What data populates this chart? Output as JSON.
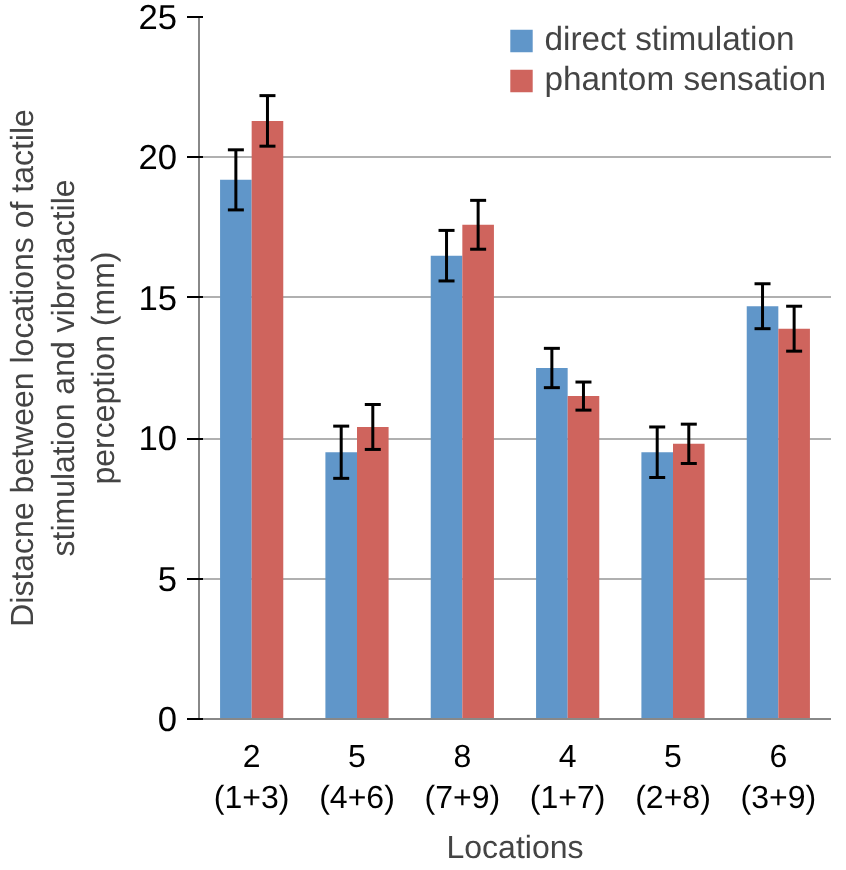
{
  "chart_data": {
    "type": "bar",
    "categories": [
      "2\n(1+3)",
      "5\n(4+6)",
      "8\n(7+9)",
      "4\n(1+7)",
      "5\n(2+8)",
      "6\n(3+9)"
    ],
    "xlabel": "Locations",
    "ylabel": "Distacne between locations of tactile\nstimulation and vibrotactile\nperception (mm)",
    "series": [
      {
        "name": "direct stimulation",
        "color": "#6096c9",
        "values": [
          19.2,
          9.5,
          16.5,
          12.5,
          9.5,
          14.7
        ],
        "errors": [
          1.07,
          0.93,
          0.9,
          0.7,
          0.9,
          0.8
        ]
      },
      {
        "name": "phantom sensation",
        "color": "#cf645d",
        "values": [
          21.3,
          10.4,
          17.6,
          11.5,
          9.8,
          13.9
        ],
        "errors": [
          0.9,
          0.8,
          0.87,
          0.5,
          0.7,
          0.8
        ]
      }
    ],
    "ylim": [
      0,
      25
    ],
    "yticks": [
      0,
      5,
      10,
      15,
      20,
      25
    ],
    "grid": "y",
    "legend": "top right"
  }
}
